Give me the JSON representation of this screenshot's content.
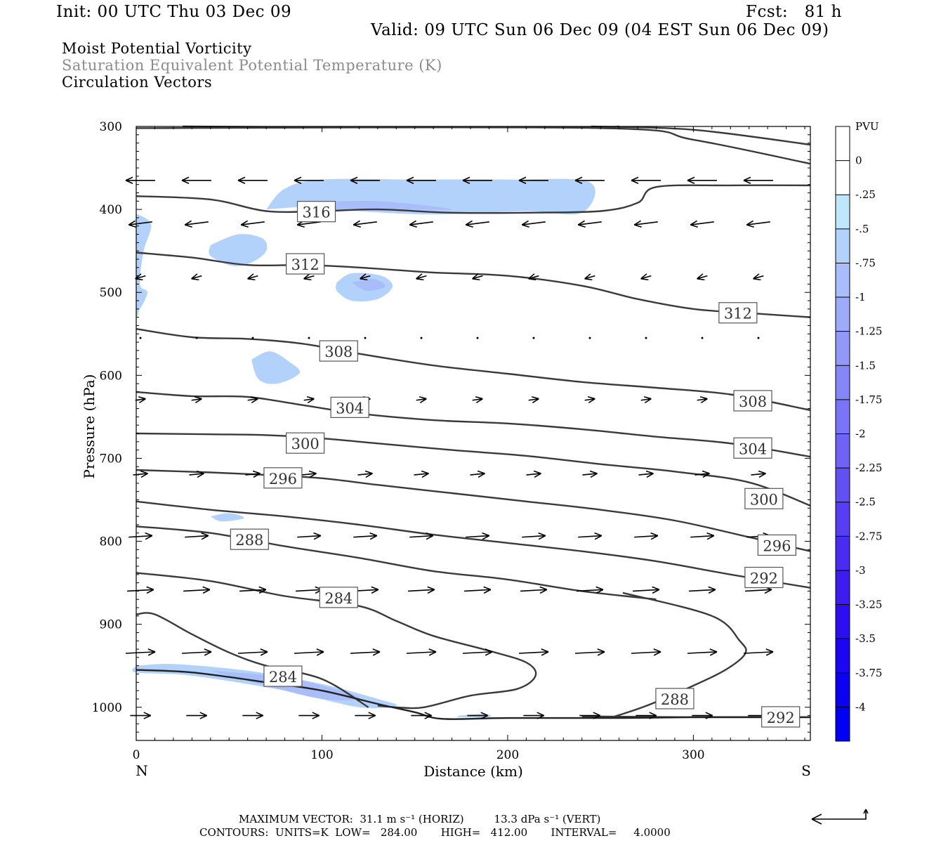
{
  "header": {
    "init": "Init: 00 UTC Thu 03 Dec 09",
    "fcst": "Fcst:   81 h",
    "valid": "Valid: 09 UTC Sun 06 Dec 09 (04 EST Sun 06 Dec 09)",
    "field1": "Moist Potential Vorticity",
    "field2": "Saturation Equivalent Potential Temperature (K)",
    "field3": "Circulation Vectors"
  },
  "colorbar": {
    "unit": "PVU",
    "labels": [
      "0",
      "-.25",
      "-.5",
      "-.75",
      "-1",
      "-1.25",
      "-1.5",
      "-1.75",
      "-2",
      "-2.25",
      "-2.5",
      "-2.75",
      "-3",
      "-3.25",
      "-3.5",
      "-3.75",
      "-4"
    ],
    "colors": [
      "#ffffff",
      "#ffffff",
      "#bfe6fb",
      "#b3d2fb",
      "#a8bdfa",
      "#9dabf9",
      "#9298f8",
      "#8586f7",
      "#7a74f6",
      "#6f62f5",
      "#6350f3",
      "#573ef2",
      "#4a2cf1",
      "#3e1cf0",
      "#2c0ef0",
      "#1c05f0",
      "#0a00f2",
      "#0000f4"
    ]
  },
  "footer": {
    "line1": "MAXIMUM VECTOR:  31.1 m s⁻¹ (HORIZ)         13.3 dPa s⁻¹ (VERT)",
    "line2": "CONTOURS:  UNITS=K  LOW=   284.00       HIGH=   412.00       INTERVAL=     4.0000"
  },
  "chart_data": {
    "type": "cross-section",
    "xlabel": "Distance (km)",
    "ylabel": "Pressure (hPa)",
    "x_left_label": "N",
    "x_right_label": "S",
    "xlim": [
      0,
      363
    ],
    "ylim": [
      1040,
      300
    ],
    "x_ticks": [
      0,
      100,
      200,
      300
    ],
    "y_ticks": [
      300,
      400,
      500,
      600,
      700,
      800,
      900,
      1000
    ],
    "contours": [
      {
        "label": "316",
        "label_at": [
          97,
          403
        ],
        "points": [
          [
            0,
            384
          ],
          [
            40,
            388
          ],
          [
            70,
            402
          ],
          [
            100,
            402
          ],
          [
            130,
            400
          ],
          [
            170,
            404
          ],
          [
            210,
            404
          ],
          [
            250,
            402
          ],
          [
            270,
            392
          ],
          [
            280,
            373
          ],
          [
            320,
            371
          ],
          [
            363,
            371
          ]
        ]
      },
      {
        "label": "312",
        "label_at": [
          91,
          466
        ],
        "points": [
          [
            0,
            452
          ],
          [
            30,
            458
          ],
          [
            60,
            467
          ],
          [
            90,
            467
          ],
          [
            120,
            470
          ],
          [
            160,
            476
          ],
          [
            200,
            480
          ],
          [
            240,
            492
          ],
          [
            270,
            508
          ],
          [
            300,
            520
          ],
          [
            330,
            525
          ],
          [
            363,
            530
          ]
        ]
      },
      {
        "label": "312",
        "label_at": [
          324,
          525
        ],
        "points": []
      },
      {
        "label": "308",
        "label_at": [
          109,
          571
        ],
        "points": [
          [
            0,
            544
          ],
          [
            30,
            554
          ],
          [
            60,
            556
          ],
          [
            90,
            562
          ],
          [
            120,
            574
          ],
          [
            160,
            588
          ],
          [
            200,
            598
          ],
          [
            240,
            608
          ],
          [
            280,
            615
          ],
          [
            320,
            623
          ],
          [
            363,
            642
          ]
        ]
      },
      {
        "label": "308",
        "label_at": [
          332,
          631
        ],
        "points": []
      },
      {
        "label": "304",
        "label_at": [
          115,
          639
        ],
        "points": [
          [
            0,
            620
          ],
          [
            30,
            625
          ],
          [
            60,
            626
          ],
          [
            90,
            636
          ],
          [
            120,
            646
          ],
          [
            160,
            654
          ],
          [
            200,
            658
          ],
          [
            240,
            665
          ],
          [
            280,
            674
          ],
          [
            320,
            682
          ],
          [
            363,
            698
          ]
        ]
      },
      {
        "label": "304",
        "label_at": [
          332,
          688
        ],
        "points": []
      },
      {
        "label": "300",
        "label_at": [
          91,
          682
        ],
        "points": [
          [
            0,
            670
          ],
          [
            40,
            671
          ],
          [
            70,
            672
          ],
          [
            100,
            676
          ],
          [
            130,
            682
          ],
          [
            170,
            690
          ],
          [
            210,
            697
          ],
          [
            250,
            707
          ],
          [
            290,
            716
          ],
          [
            330,
            729
          ],
          [
            363,
            757
          ]
        ]
      },
      {
        "label": "300",
        "label_at": [
          338,
          749
        ],
        "points": []
      },
      {
        "label": "296",
        "label_at": [
          79,
          724
        ],
        "points": [
          [
            0,
            714
          ],
          [
            40,
            717
          ],
          [
            70,
            720
          ],
          [
            100,
            724
          ],
          [
            130,
            732
          ],
          [
            170,
            742
          ],
          [
            210,
            752
          ],
          [
            250,
            762
          ],
          [
            290,
            775
          ],
          [
            330,
            795
          ],
          [
            363,
            812
          ]
        ]
      },
      {
        "label": "296",
        "label_at": [
          345,
          805
        ],
        "points": []
      },
      {
        "label": "292",
        "label_at": [
          338,
          844
        ],
        "points": [
          [
            0,
            752
          ],
          [
            40,
            762
          ],
          [
            80,
            770
          ],
          [
            120,
            780
          ],
          [
            160,
            792
          ],
          [
            200,
            802
          ],
          [
            240,
            812
          ],
          [
            280,
            824
          ],
          [
            320,
            840
          ],
          [
            363,
            856
          ]
        ]
      },
      {
        "label": "288",
        "label_at": [
          61,
          798
        ],
        "points": [
          [
            0,
            782
          ],
          [
            40,
            790
          ],
          [
            80,
            806
          ],
          [
            120,
            820
          ],
          [
            160,
            836
          ],
          [
            200,
            846
          ],
          [
            240,
            860
          ],
          [
            280,
            870
          ]
        ]
      },
      {
        "label": "284",
        "label_at": [
          109,
          868
        ],
        "points": [
          [
            0,
            838
          ],
          [
            40,
            848
          ],
          [
            80,
            866
          ],
          [
            120,
            878
          ],
          [
            140,
            896
          ],
          [
            160,
            914
          ],
          [
            190,
            932
          ],
          [
            210,
            946
          ],
          [
            215,
            962
          ],
          [
            205,
            978
          ],
          [
            180,
            986
          ],
          [
            155,
            1000
          ],
          [
            140,
            1000
          ],
          [
            130,
            998
          ]
        ]
      },
      {
        "label": "284",
        "label_at": [
          79,
          963
        ],
        "points": [
          [
            0,
            888
          ],
          [
            10,
            888
          ],
          [
            30,
            912
          ],
          [
            50,
            934
          ],
          [
            70,
            950
          ],
          [
            100,
            966
          ],
          [
            125,
            1000
          ]
        ]
      },
      {
        "label": "288",
        "label_at": [
          290,
          990
        ],
        "points": [
          [
            262,
            862
          ],
          [
            310,
            890
          ],
          [
            325,
            920
          ],
          [
            328,
            935
          ],
          [
            318,
            954
          ],
          [
            300,
            974
          ],
          [
            275,
            998
          ],
          [
            255,
            1013
          ]
        ]
      },
      {
        "label": "292",
        "label_at": [
          347,
          1012
        ],
        "points": [
          [
            240,
            1011
          ],
          [
            300,
            1012
          ],
          [
            363,
            1012
          ]
        ]
      }
    ],
    "pv_shading": [
      {
        "value": -0.5,
        "points": [
          [
            70,
            400
          ],
          [
            100,
            396
          ],
          [
            120,
            402
          ],
          [
            160,
            406
          ],
          [
            210,
            402
          ],
          [
            240,
            404
          ],
          [
            244,
            367
          ],
          [
            200,
            364
          ],
          [
            150,
            364
          ],
          [
            100,
            364
          ],
          [
            80,
            375
          ]
        ]
      },
      {
        "value": -0.75,
        "points": [
          [
            90,
            392
          ],
          [
            130,
            390
          ],
          [
            170,
            400
          ],
          [
            140,
            400
          ],
          [
            100,
            400
          ]
        ]
      },
      {
        "value": -0.5,
        "points": [
          [
            0,
            405
          ],
          [
            8,
            418
          ],
          [
            4,
            450
          ],
          [
            2,
            490
          ],
          [
            6,
            500
          ],
          [
            2,
            520
          ],
          [
            0,
            520
          ]
        ]
      },
      {
        "value": -0.5,
        "points": [
          [
            40,
            443
          ],
          [
            55,
            430
          ],
          [
            68,
            435
          ],
          [
            70,
            450
          ],
          [
            62,
            464
          ],
          [
            52,
            468
          ],
          [
            40,
            456
          ]
        ]
      },
      {
        "value": -0.5,
        "points": [
          [
            108,
            488
          ],
          [
            116,
            477
          ],
          [
            132,
            480
          ],
          [
            138,
            493
          ],
          [
            130,
            508
          ],
          [
            116,
            510
          ],
          [
            108,
            498
          ]
        ]
      },
      {
        "value": -0.75,
        "points": [
          [
            116,
            488
          ],
          [
            128,
            484
          ],
          [
            134,
            493
          ],
          [
            124,
            498
          ]
        ]
      },
      {
        "value": -0.5,
        "points": [
          [
            62,
            581
          ],
          [
            72,
            571
          ],
          [
            82,
            583
          ],
          [
            88,
            597
          ],
          [
            76,
            610
          ],
          [
            66,
            605
          ]
        ]
      },
      {
        "value": -0.5,
        "points": [
          [
            0,
            950
          ],
          [
            20,
            948
          ],
          [
            60,
            956
          ],
          [
            100,
            972
          ],
          [
            130,
            990
          ],
          [
            140,
            998
          ],
          [
            120,
            1000
          ],
          [
            80,
            980
          ],
          [
            30,
            962
          ],
          [
            0,
            958
          ]
        ]
      },
      {
        "value": -0.75,
        "points": [
          [
            40,
            956
          ],
          [
            80,
            964
          ],
          [
            110,
            980
          ],
          [
            120,
            990
          ],
          [
            100,
            990
          ],
          [
            70,
            974
          ]
        ]
      },
      {
        "value": -0.5,
        "points": [
          [
            40,
            770
          ],
          [
            50,
            766
          ],
          [
            58,
            772
          ],
          [
            46,
            776
          ]
        ]
      },
      {
        "value": -0.5,
        "points": [
          [
            174,
            1010
          ],
          [
            188,
            1008
          ],
          [
            190,
            1012
          ],
          [
            174,
            1012
          ]
        ]
      }
    ],
    "ground": [
      [
        0,
        955
      ],
      [
        30,
        958
      ],
      [
        70,
        970
      ],
      [
        100,
        980
      ],
      [
        130,
        996
      ],
      [
        150,
        1006
      ],
      [
        165,
        1014
      ],
      [
        200,
        1013
      ],
      [
        260,
        1013
      ],
      [
        300,
        1012
      ],
      [
        363,
        1012
      ]
    ]
  }
}
